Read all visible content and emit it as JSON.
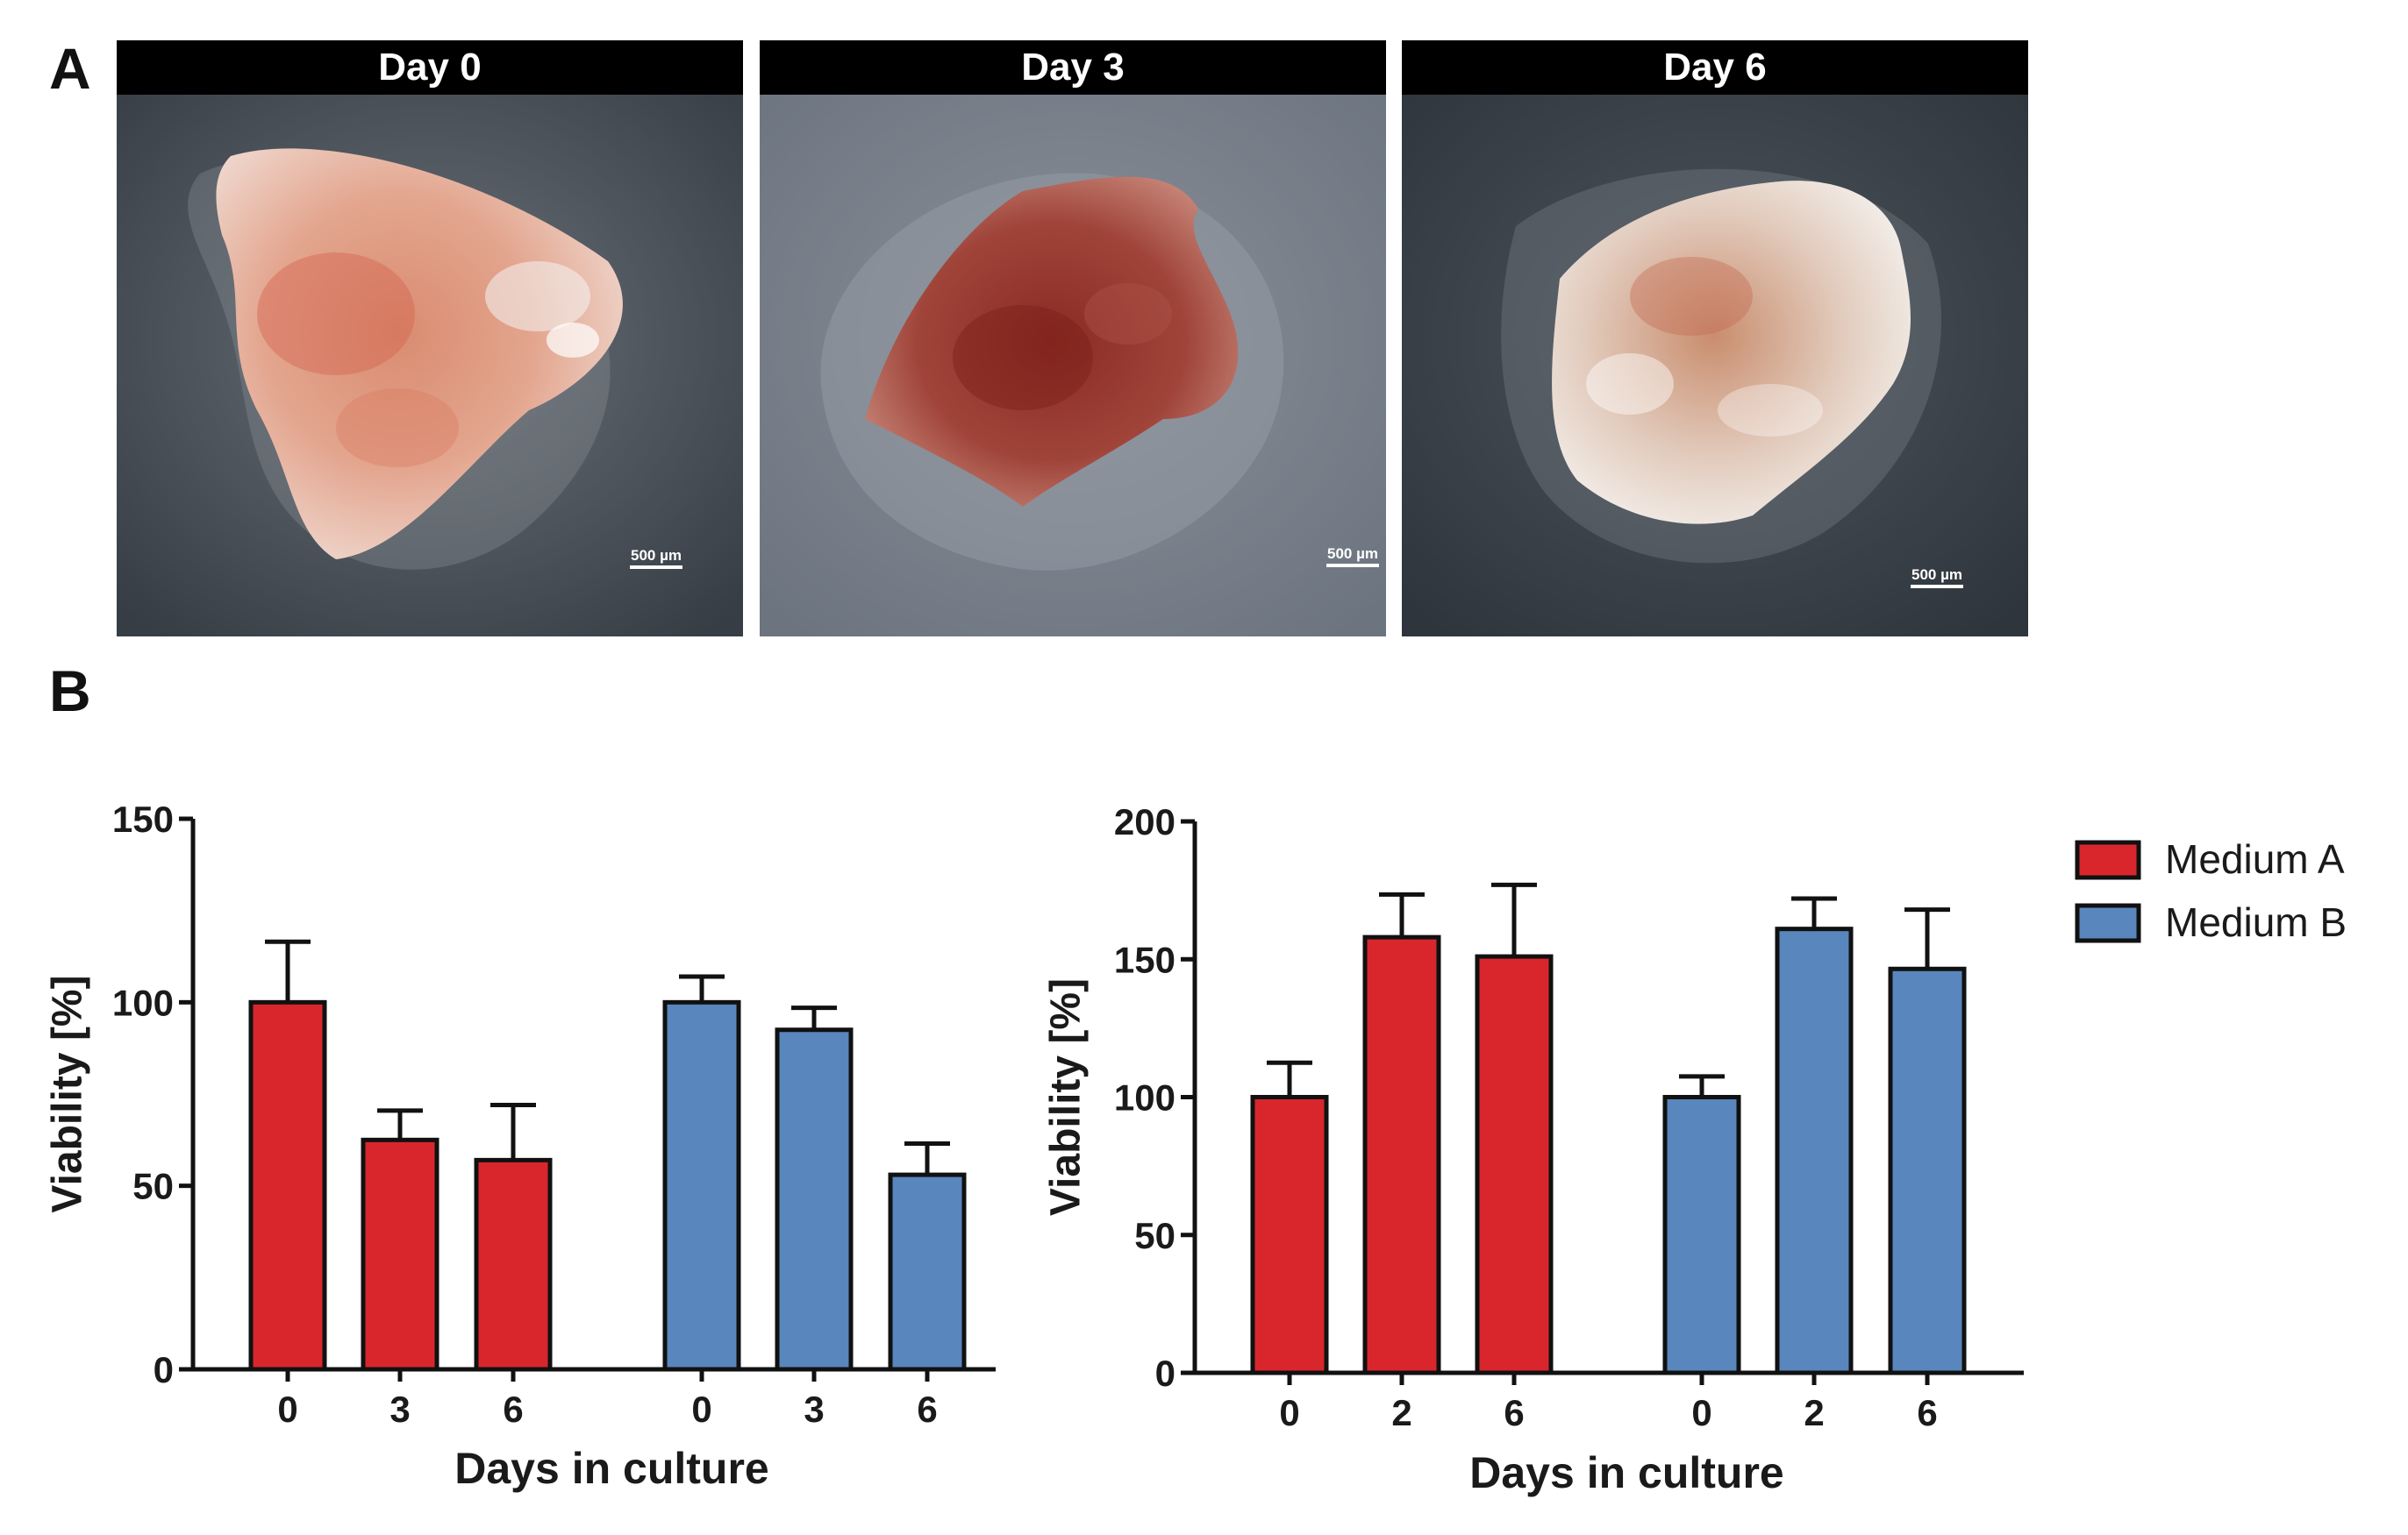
{
  "panel_labels": {
    "a": "A",
    "b": "B"
  },
  "images": [
    {
      "title": "Day 0",
      "scale_label": "500 µm"
    },
    {
      "title": "Day 3",
      "scale_label": "500 µm"
    },
    {
      "title": "Day 6",
      "scale_label": "500 µm"
    }
  ],
  "colors": {
    "medium_a": "#d9262d",
    "medium_b": "#5886bd"
  },
  "chart_data": [
    {
      "type": "bar",
      "title": "",
      "xlabel": "Days in culture",
      "ylabel": "Viability [%]",
      "ylim": [
        0,
        150
      ],
      "yticks": [
        0,
        50,
        100,
        150
      ],
      "series": [
        {
          "name": "Medium A",
          "categories": [
            "0",
            "3",
            "6"
          ],
          "values": [
            100,
            62.5,
            57
          ],
          "errors": [
            16.5,
            8,
            15
          ]
        },
        {
          "name": "Medium B",
          "categories": [
            "0",
            "3",
            "6"
          ],
          "values": [
            100,
            92.5,
            53
          ],
          "errors": [
            7,
            6,
            8.5
          ]
        }
      ]
    },
    {
      "type": "bar",
      "title": "",
      "xlabel": "Days in culture",
      "ylabel": "Viability [%]",
      "ylim": [
        0,
        200
      ],
      "yticks": [
        0,
        50,
        100,
        150,
        200
      ],
      "series": [
        {
          "name": "Medium A",
          "categories": [
            "0",
            "2",
            "6"
          ],
          "values": [
            100,
            158,
            151
          ],
          "errors": [
            12.5,
            15.5,
            26
          ]
        },
        {
          "name": "Medium B",
          "categories": [
            "0",
            "2",
            "6"
          ],
          "values": [
            100,
            161,
            146.5
          ],
          "errors": [
            7.5,
            11,
            21.5
          ]
        }
      ]
    }
  ],
  "legend": {
    "items": [
      "Medium A",
      "Medium B"
    ],
    "position": "top-right"
  }
}
